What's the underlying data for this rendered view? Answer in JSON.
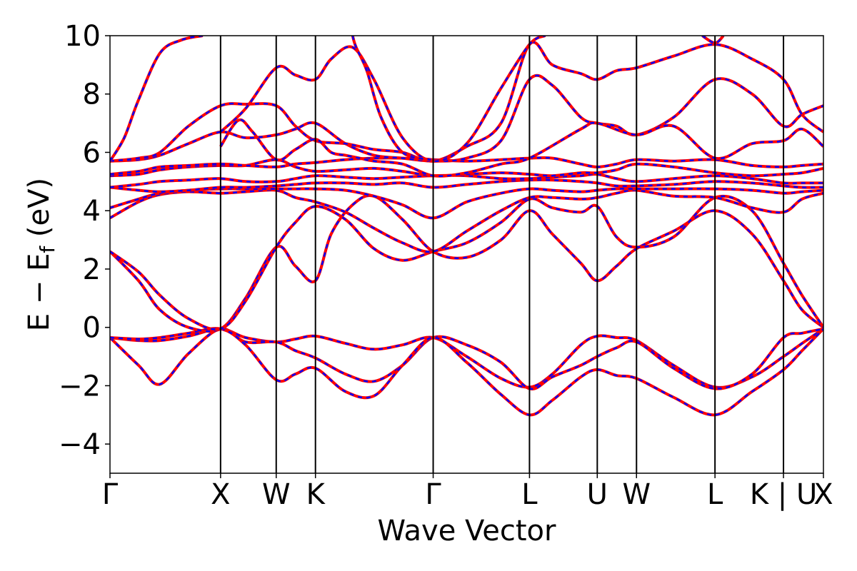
{
  "chart_data": {
    "type": "line",
    "xlabel": "Wave Vector",
    "ylabel_main": "E − E",
    "ylabel_sub": "f",
    "ylabel_unit": " (eV)",
    "ylim": [
      -5,
      10
    ],
    "yticks": [
      -4,
      -2,
      0,
      2,
      4,
      6,
      8,
      10
    ],
    "ytick_labels": [
      "−4",
      "−2",
      "0",
      "2",
      "4",
      "6",
      "8",
      "10"
    ],
    "xlim": [
      0,
      1
    ],
    "kpoints": [
      {
        "label": "Γ",
        "x": 0.0
      },
      {
        "label": "X",
        "x": 0.155
      },
      {
        "label": "W",
        "x": 0.233
      },
      {
        "label": "K",
        "x": 0.288
      },
      {
        "label": "Γ",
        "x": 0.453
      },
      {
        "label": "L",
        "x": 0.588
      },
      {
        "label": "U",
        "x": 0.683
      },
      {
        "label": "W",
        "x": 0.738
      },
      {
        "label": "L",
        "x": 0.848
      },
      {
        "label": "K | U",
        "x": 0.944
      },
      {
        "label": "X",
        "x": 1.0
      }
    ],
    "series_style": {
      "solid_color": "#ff0000",
      "dashed_color": "#0000ff"
    },
    "series": [
      {
        "x": [
          0.0,
          0.04,
          0.07,
          0.11,
          0.155,
          0.19,
          0.233,
          0.26,
          0.288,
          0.33,
          0.37,
          0.41,
          0.453,
          0.5,
          0.548,
          0.588,
          0.62,
          0.66,
          0.683,
          0.71,
          0.738,
          0.79,
          0.848,
          0.9,
          0.944,
          0.97,
          1.0
        ],
        "y": [
          -0.35,
          -0.45,
          -0.45,
          -0.3,
          -0.05,
          -0.35,
          -0.5,
          -0.4,
          -0.3,
          -0.55,
          -0.75,
          -0.6,
          -0.35,
          -1.0,
          -1.75,
          -2.05,
          -1.6,
          -0.6,
          -0.3,
          -0.35,
          -0.45,
          -1.3,
          -2.05,
          -1.7,
          -1.0,
          -0.55,
          -0.05
        ]
      },
      {
        "x": [
          0.0,
          0.04,
          0.07,
          0.11,
          0.155,
          0.19,
          0.233,
          0.26,
          0.288,
          0.33,
          0.37,
          0.41,
          0.453,
          0.5,
          0.548,
          0.588,
          0.62,
          0.66,
          0.683,
          0.71,
          0.738,
          0.79,
          0.848,
          0.9,
          0.944,
          0.97,
          1.0
        ],
        "y": [
          -0.35,
          -1.3,
          -1.95,
          -0.9,
          -0.05,
          -0.5,
          -0.5,
          -0.8,
          -1.05,
          -1.6,
          -1.85,
          -1.3,
          -0.35,
          -0.6,
          -1.2,
          -2.1,
          -1.7,
          -1.3,
          -1.0,
          -0.7,
          -0.5,
          -1.4,
          -2.1,
          -1.6,
          -0.35,
          -0.2,
          -0.05
        ]
      },
      {
        "x": [
          0.0,
          0.04,
          0.07,
          0.11,
          0.155,
          0.19,
          0.233,
          0.26,
          0.288,
          0.33,
          0.37,
          0.41,
          0.453,
          0.5,
          0.548,
          0.588,
          0.62,
          0.66,
          0.683,
          0.71,
          0.738,
          0.79,
          0.848,
          0.9,
          0.944,
          0.97,
          1.0
        ],
        "y": [
          -0.35,
          -0.4,
          -0.35,
          -0.2,
          -0.05,
          -0.6,
          -1.8,
          -1.6,
          -1.4,
          -2.2,
          -2.35,
          -1.3,
          -0.35,
          -1.2,
          -2.3,
          -3.0,
          -2.5,
          -1.7,
          -1.45,
          -1.65,
          -1.75,
          -2.4,
          -3.0,
          -2.2,
          -1.45,
          -0.8,
          -0.05
        ]
      },
      {
        "x": [
          0.0,
          0.04,
          0.07,
          0.11,
          0.155,
          0.19,
          0.233,
          0.26,
          0.288,
          0.31,
          0.34,
          0.37,
          0.41,
          0.453,
          0.5,
          0.548,
          0.588,
          0.62,
          0.66,
          0.683,
          0.71,
          0.738,
          0.79,
          0.848,
          0.9,
          0.944,
          0.97,
          1.0
        ],
        "y": [
          2.6,
          1.6,
          0.6,
          0.0,
          -0.05,
          1.0,
          2.75,
          2.1,
          1.6,
          3.2,
          4.2,
          4.5,
          3.7,
          2.6,
          2.4,
          3.0,
          4.0,
          3.2,
          2.2,
          1.6,
          2.1,
          2.7,
          3.3,
          4.0,
          3.2,
          1.6,
          0.6,
          0.0
        ]
      },
      {
        "x": [
          0.0,
          0.04,
          0.07,
          0.11,
          0.155,
          0.19,
          0.233,
          0.26,
          0.288,
          0.33,
          0.37,
          0.41,
          0.453,
          0.5,
          0.548,
          0.588,
          0.62,
          0.66,
          0.683,
          0.71,
          0.738,
          0.79,
          0.848,
          0.9,
          0.944,
          0.97,
          1.0
        ],
        "y": [
          2.6,
          1.9,
          1.1,
          0.3,
          -0.05,
          0.9,
          2.75,
          3.6,
          4.15,
          3.7,
          2.7,
          2.3,
          2.6,
          2.9,
          3.6,
          4.4,
          4.1,
          3.95,
          4.15,
          3.1,
          2.75,
          3.1,
          4.45,
          4.0,
          2.2,
          1.1,
          0.0
        ]
      },
      {
        "x": [
          0.0,
          0.04,
          0.07,
          0.11,
          0.155,
          0.19,
          0.233,
          0.26,
          0.288,
          0.33,
          0.37,
          0.41,
          0.453,
          0.5,
          0.548,
          0.588,
          0.62,
          0.66,
          0.683,
          0.71,
          0.738,
          0.79,
          0.848,
          0.9,
          0.944,
          0.97,
          1.0
        ],
        "y": [
          3.75,
          4.3,
          4.55,
          4.65,
          4.6,
          4.65,
          4.7,
          4.45,
          4.3,
          3.95,
          3.4,
          2.9,
          2.6,
          3.3,
          4.0,
          4.45,
          4.45,
          4.4,
          4.45,
          4.6,
          4.7,
          4.5,
          4.45,
          4.1,
          3.95,
          4.4,
          4.6
        ]
      },
      {
        "x": [
          0.0,
          0.04,
          0.07,
          0.11,
          0.155,
          0.19,
          0.233,
          0.26,
          0.288,
          0.33,
          0.37,
          0.41,
          0.453,
          0.5,
          0.548,
          0.588,
          0.62,
          0.66,
          0.683,
          0.71,
          0.738,
          0.79,
          0.848,
          0.9,
          0.944,
          0.97,
          1.0
        ],
        "y": [
          4.1,
          4.4,
          4.6,
          4.7,
          4.75,
          4.75,
          4.75,
          4.75,
          4.75,
          4.7,
          4.5,
          4.2,
          3.75,
          4.3,
          4.6,
          4.75,
          4.7,
          4.65,
          4.7,
          4.75,
          4.75,
          4.75,
          4.75,
          4.7,
          4.6,
          4.65,
          4.7
        ]
      },
      {
        "x": [
          0.0,
          0.04,
          0.07,
          0.11,
          0.155,
          0.19,
          0.233,
          0.26,
          0.288,
          0.33,
          0.37,
          0.41,
          0.453,
          0.5,
          0.548,
          0.588,
          0.62,
          0.66,
          0.683,
          0.71,
          0.738,
          0.79,
          0.848,
          0.9,
          0.944,
          0.97,
          1.0
        ],
        "y": [
          4.8,
          4.7,
          4.65,
          4.7,
          4.8,
          4.8,
          4.85,
          4.9,
          4.95,
          4.95,
          4.9,
          4.95,
          4.8,
          4.9,
          5.0,
          5.05,
          5.05,
          5.0,
          4.95,
          4.85,
          4.85,
          4.9,
          5.0,
          4.95,
          4.85,
          4.8,
          4.8
        ]
      },
      {
        "x": [
          0.0,
          0.04,
          0.07,
          0.11,
          0.155,
          0.19,
          0.233,
          0.26,
          0.288,
          0.33,
          0.37,
          0.41,
          0.453,
          0.5,
          0.548,
          0.588,
          0.62,
          0.66,
          0.683,
          0.71,
          0.738,
          0.79,
          0.848,
          0.9,
          0.944,
          0.97,
          1.0
        ],
        "y": [
          4.8,
          4.9,
          5.0,
          5.05,
          5.1,
          5.0,
          5.0,
          5.1,
          5.2,
          5.15,
          5.1,
          5.15,
          5.2,
          5.2,
          5.1,
          5.1,
          5.15,
          5.2,
          5.25,
          5.1,
          5.0,
          5.1,
          5.2,
          5.1,
          4.95,
          4.95,
          4.95
        ]
      },
      {
        "x": [
          0.0,
          0.04,
          0.07,
          0.11,
          0.155,
          0.19,
          0.233,
          0.26,
          0.288,
          0.33,
          0.37,
          0.41,
          0.453,
          0.5,
          0.548,
          0.588,
          0.62,
          0.66,
          0.683,
          0.71,
          0.738,
          0.79,
          0.848,
          0.9,
          0.944,
          0.97,
          1.0
        ],
        "y": [
          5.2,
          5.25,
          5.4,
          5.5,
          5.55,
          5.55,
          5.75,
          5.5,
          5.35,
          5.4,
          5.45,
          5.35,
          5.2,
          5.25,
          5.3,
          5.25,
          5.2,
          5.3,
          5.3,
          5.4,
          5.6,
          5.5,
          5.3,
          5.2,
          5.25,
          5.3,
          5.45
        ]
      },
      {
        "x": [
          0.0,
          0.04,
          0.07,
          0.11,
          0.155,
          0.19,
          0.233,
          0.26,
          0.288,
          0.33,
          0.37,
          0.41,
          0.453,
          0.5,
          0.548,
          0.588,
          0.62,
          0.66,
          0.683,
          0.71,
          0.738,
          0.79,
          0.848,
          0.9,
          0.944,
          0.97,
          1.0
        ],
        "y": [
          5.25,
          5.35,
          5.5,
          5.55,
          5.6,
          5.55,
          5.5,
          5.6,
          5.65,
          5.75,
          5.8,
          5.8,
          5.75,
          5.7,
          5.75,
          5.8,
          5.8,
          5.6,
          5.5,
          5.6,
          5.75,
          5.7,
          5.75,
          5.55,
          5.5,
          5.55,
          5.6
        ]
      },
      {
        "x": [
          0.0,
          0.04,
          0.07,
          0.11,
          0.155,
          0.19,
          0.233,
          0.26,
          0.288,
          0.33,
          0.37,
          0.41,
          0.453,
          0.5,
          0.548,
          0.588,
          0.62,
          0.66,
          0.683,
          0.71,
          0.738,
          0.79,
          0.848,
          0.9,
          0.944,
          0.97,
          1.0
        ],
        "y": [
          5.7,
          5.75,
          5.9,
          6.3,
          6.7,
          6.5,
          6.6,
          6.8,
          7.0,
          6.3,
          5.9,
          5.8,
          5.7,
          5.8,
          6.4,
          8.5,
          8.3,
          7.2,
          7.0,
          6.9,
          6.6,
          7.2,
          8.5,
          8.0,
          6.9,
          7.3,
          7.6
        ]
      },
      {
        "x": [
          0.0,
          0.04,
          0.07,
          0.11,
          0.155,
          0.19,
          0.233,
          0.26,
          0.288,
          0.33,
          0.37,
          0.41,
          0.453,
          0.5,
          0.548,
          0.588,
          0.62,
          0.66,
          0.683,
          0.71,
          0.738,
          0.79,
          0.848,
          0.9,
          0.944,
          0.97,
          1.0
        ],
        "y": [
          5.7,
          5.8,
          6.0,
          6.9,
          7.6,
          7.65,
          7.6,
          6.9,
          6.4,
          6.3,
          6.1,
          6.0,
          5.7,
          6.2,
          7.0,
          9.7,
          9.0,
          8.7,
          8.5,
          8.8,
          8.9,
          9.3,
          9.7,
          9.2,
          8.5,
          7.3,
          6.7
        ]
      },
      {
        "x": [
          0.0,
          0.02,
          0.04,
          0.07,
          0.1,
          0.13
        ],
        "y": [
          5.7,
          6.5,
          7.8,
          9.4,
          9.85,
          10.0
        ]
      },
      {
        "x": [
          0.155,
          0.19,
          0.233,
          0.26,
          0.288,
          0.31,
          0.34,
          0.37,
          0.41,
          0.453,
          0.5,
          0.548,
          0.588,
          0.61
        ],
        "y": [
          6.7,
          7.5,
          8.9,
          8.65,
          8.5,
          9.2,
          9.6,
          8.5,
          6.5,
          5.7,
          6.3,
          8.2,
          9.7,
          10.0
        ]
      },
      {
        "x": [
          0.155,
          0.18,
          0.2,
          0.233,
          0.26,
          0.288,
          0.31,
          0.33,
          0.35,
          0.37,
          0.41,
          0.453,
          0.5,
          0.548,
          0.588,
          0.66,
          0.683,
          0.738,
          0.79,
          0.848,
          0.9,
          0.944,
          0.97,
          1.0
        ],
        "y": [
          6.2,
          7.1,
          6.7,
          5.75,
          6.1,
          6.45,
          6.0,
          5.9,
          5.8,
          5.7,
          5.6,
          5.2,
          5.3,
          5.6,
          5.8,
          6.8,
          7.0,
          6.6,
          6.9,
          5.8,
          6.3,
          6.4,
          6.8,
          6.2
        ]
      },
      {
        "x": [
          0.34,
          0.345,
          0.36,
          0.38,
          0.41,
          0.45
        ],
        "y": [
          10.0,
          9.6,
          8.8,
          7.2,
          6.0,
          5.75
        ]
      },
      {
        "x": [
          0.83,
          0.848,
          0.86
        ],
        "y": [
          10.0,
          9.75,
          10.0
        ]
      }
    ]
  }
}
